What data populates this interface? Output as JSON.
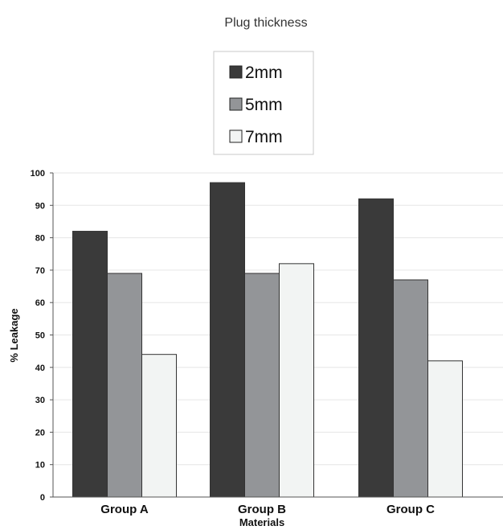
{
  "chart_data": {
    "type": "bar",
    "legend_title": "Plug thickness",
    "categories": [
      "Group A",
      "Group B",
      "Group C"
    ],
    "series": [
      {
        "name": "2mm",
        "values": [
          82,
          97,
          92
        ],
        "color": "#3a3a3a"
      },
      {
        "name": "5mm",
        "values": [
          69,
          69,
          67
        ],
        "color": "#939598"
      },
      {
        "name": "7mm",
        "values": [
          44,
          72,
          42
        ],
        "color": "#f2f4f3"
      }
    ],
    "xlabel": "Materials",
    "ylabel": "% Leakage",
    "ylim": [
      0,
      100
    ],
    "yticks": [
      "0",
      "10",
      "20",
      "30",
      "40",
      "50",
      "60",
      "70",
      "80",
      "90",
      "100"
    ],
    "grid": true,
    "legend_position": "top-center"
  }
}
